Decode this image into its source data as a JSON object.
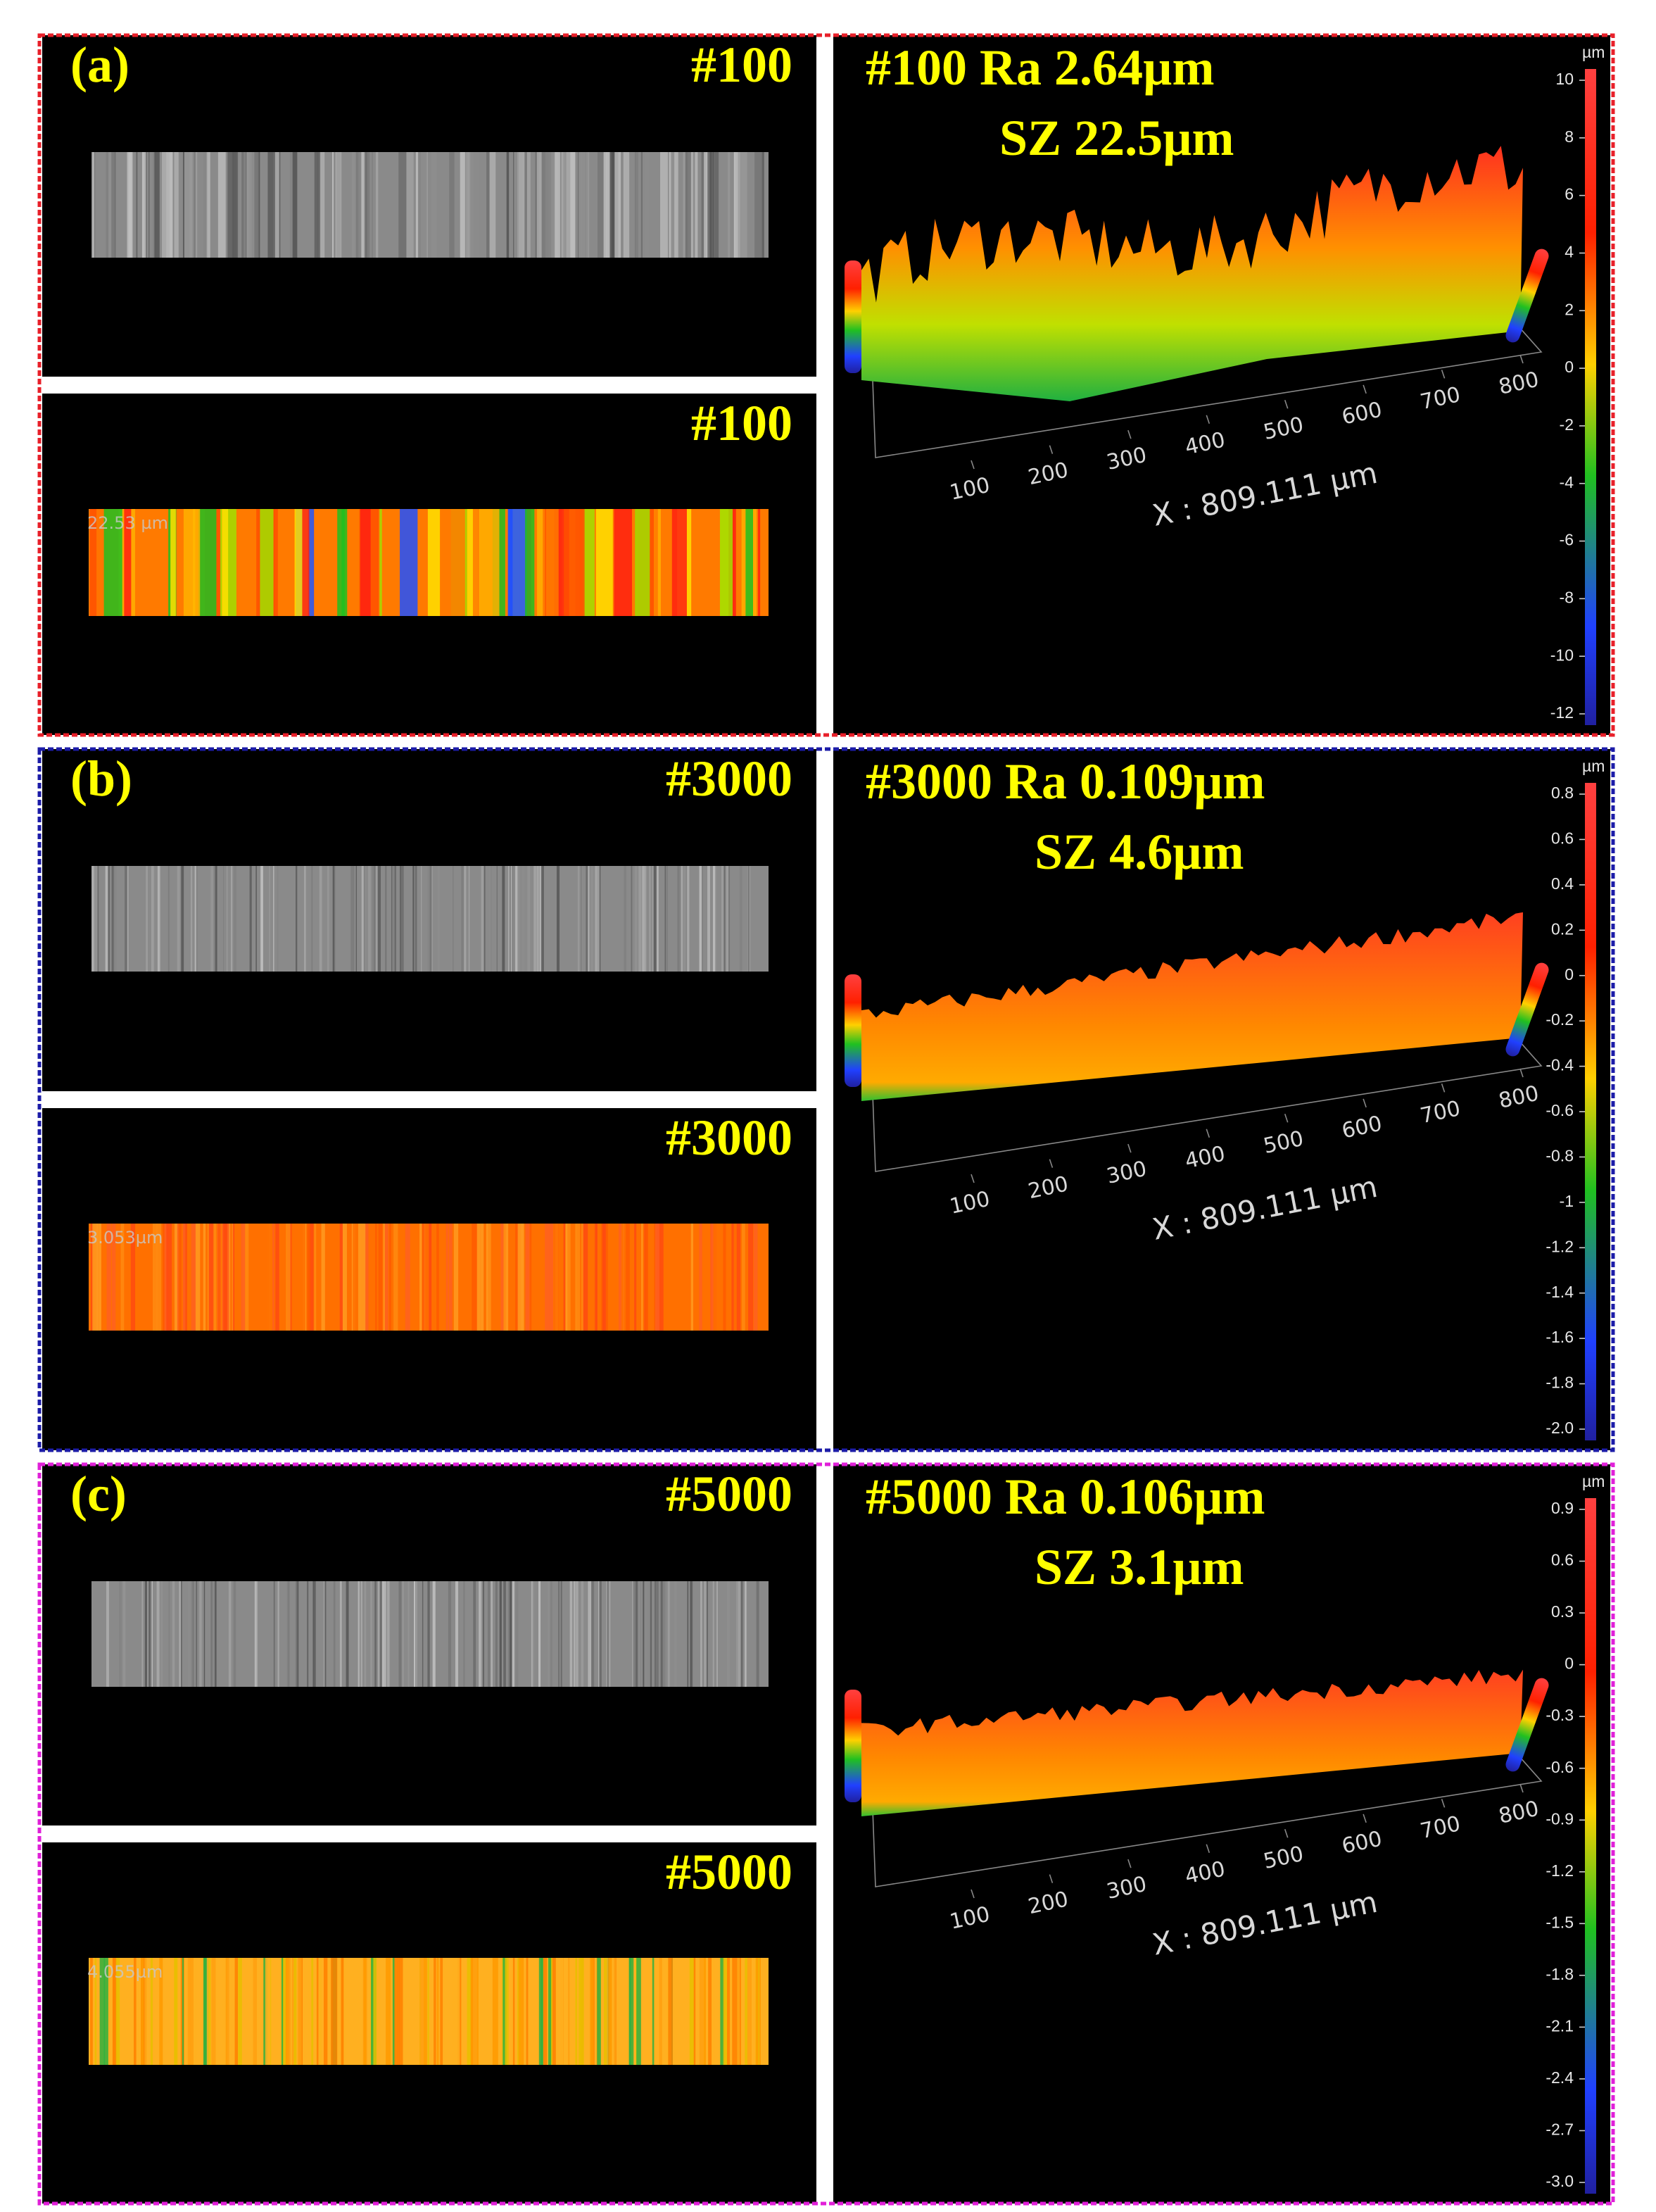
{
  "panels": [
    {
      "label": "(a)",
      "grade_top": "#100",
      "grade_bottom": "#100",
      "title": "#100 Ra 2.64µm",
      "subtitle": "SZ 22.5µm",
      "overlay": "22.53 µm",
      "x_ticks": [
        100,
        200,
        300,
        400,
        500,
        600,
        700,
        800
      ],
      "x_label": "X : 809.111 µm",
      "colorbar_unit": "µm",
      "colorbar_ticks": [
        10,
        8,
        6,
        4,
        2,
        0,
        -2,
        -4,
        -6,
        -8,
        -10,
        -12
      ],
      "border_color": "#e8202a"
    },
    {
      "label": "(b)",
      "grade_top": "#3000",
      "grade_bottom": "#3000",
      "title": "#3000 Ra 0.109µm",
      "subtitle": "SZ 4.6µm",
      "overlay": "3.053µm",
      "x_ticks": [
        100,
        200,
        300,
        400,
        500,
        600,
        700,
        800
      ],
      "x_label": "X : 809.111 µm",
      "colorbar_unit": "µm",
      "colorbar_ticks": [
        0.8,
        0.6,
        0.4,
        0.2,
        0,
        -0.2,
        -0.4,
        -0.6,
        -0.8,
        -1,
        -1.2,
        -1.4,
        -1.6,
        -1.8,
        {
          "value": -2,
          "label": "-2.0"
        }
      ],
      "border_color": "#1c1ca8"
    },
    {
      "label": "(c)",
      "grade_top": "#5000",
      "grade_bottom": "#5000",
      "title": "#5000 Ra 0.106µm",
      "subtitle": "SZ 3.1µm",
      "overlay": "4.055µm",
      "x_ticks": [
        100,
        200,
        300,
        400,
        500,
        600,
        700,
        800
      ],
      "x_label": "X : 809.111 µm",
      "colorbar_unit": "µm",
      "colorbar_ticks": [
        0.9,
        0.6,
        0.3,
        0,
        -0.3,
        -0.6,
        -0.9,
        -1.2,
        -1.5,
        -1.8,
        -2.1,
        -2.4,
        -2.7,
        {
          "value": -3,
          "label": "-3.0"
        }
      ],
      "border_color": "#e020d8"
    }
  ]
}
